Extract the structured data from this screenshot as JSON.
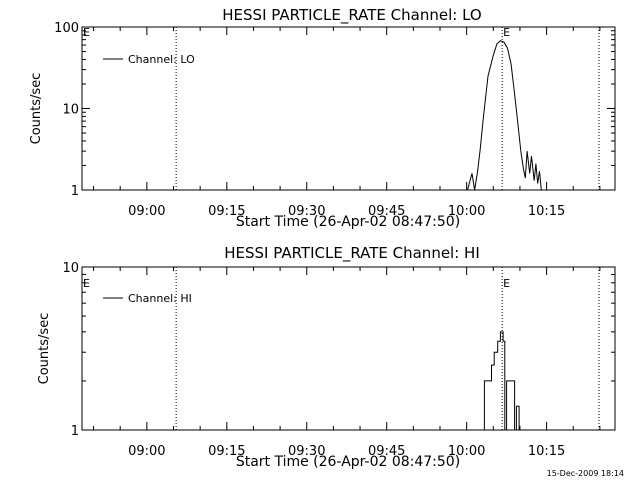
{
  "footer": {
    "timestamp": "15-Dec-2009 18:14"
  },
  "chart_data": [
    {
      "type": "line",
      "title": "HESSI PARTICLE_RATE Channel: LO",
      "xlabel": "Start Time (26-Apr-02 08:47:50)",
      "ylabel": "Counts/sec",
      "yscale": "log",
      "ylim": [
        1,
        100
      ],
      "xlim": [
        "08:47:50",
        "10:27:50"
      ],
      "x_ticks": [
        "09:00",
        "09:15",
        "09:30",
        "09:45",
        "10:00",
        "10:15"
      ],
      "y_ticks": [
        {
          "value": 1,
          "label": "1"
        },
        {
          "value": 10,
          "label": "10"
        },
        {
          "value": 100,
          "label": "100"
        }
      ],
      "legend": {
        "placement": "top-left",
        "entries": [
          "Channel: LO"
        ]
      },
      "markers": [
        {
          "time": "08:47:50",
          "label": "E",
          "line": false
        },
        {
          "time": "09:05:30",
          "label": "",
          "line": true
        },
        {
          "time": "10:06:40",
          "label": "E",
          "line": true
        },
        {
          "time": "10:24:50",
          "label": "",
          "line": true
        }
      ],
      "grid": false,
      "series": [
        {
          "name": "Channel: LO",
          "points": [
            [
              "10:00:10",
              1.0
            ],
            [
              "10:01:00",
              1.6
            ],
            [
              "10:01:30",
              1.0
            ],
            [
              "10:02:00",
              1.6
            ],
            [
              "10:02:30",
              3.0
            ],
            [
              "10:03:10",
              8.0
            ],
            [
              "10:04:00",
              25.0
            ],
            [
              "10:05:00",
              45.0
            ],
            [
              "10:05:40",
              62.0
            ],
            [
              "10:06:20",
              68.0
            ],
            [
              "10:07:00",
              65.0
            ],
            [
              "10:07:40",
              55.0
            ],
            [
              "10:08:20",
              35.0
            ],
            [
              "10:09:00",
              15.0
            ],
            [
              "10:09:40",
              6.0
            ],
            [
              "10:10:10",
              3.0
            ],
            [
              "10:10:40",
              1.8
            ],
            [
              "10:11:00",
              1.4
            ],
            [
              "10:11:20",
              3.0
            ],
            [
              "10:11:50",
              1.6
            ],
            [
              "10:12:10",
              2.6
            ],
            [
              "10:12:40",
              1.3
            ],
            [
              "10:13:00",
              2.1
            ],
            [
              "10:13:20",
              1.2
            ],
            [
              "10:13:40",
              1.7
            ],
            [
              "10:14:00",
              1.0
            ]
          ]
        }
      ]
    },
    {
      "type": "line",
      "title": "HESSI PARTICLE_RATE Channel: HI",
      "xlabel": "Start Time (26-Apr-02 08:47:50)",
      "ylabel": "Counts/sec",
      "yscale": "log",
      "ylim": [
        1,
        10
      ],
      "xlim": [
        "08:47:50",
        "10:27:50"
      ],
      "x_ticks": [
        "09:00",
        "09:15",
        "09:30",
        "09:45",
        "10:00",
        "10:15"
      ],
      "y_ticks": [
        {
          "value": 1,
          "label": "1"
        },
        {
          "value": 10,
          "label": "10"
        }
      ],
      "legend": {
        "placement": "top-left",
        "entries": [
          "Channel: HI"
        ]
      },
      "markers": [
        {
          "time": "08:47:50",
          "label": "E",
          "line": false
        },
        {
          "time": "09:05:30",
          "label": "",
          "line": true
        },
        {
          "time": "10:06:40",
          "label": "E",
          "line": true
        },
        {
          "time": "10:24:50",
          "label": "",
          "line": true
        }
      ],
      "grid": false,
      "series": [
        {
          "name": "Channel: HI",
          "points": [
            [
              "10:03:20",
              1.0
            ],
            [
              "10:03:20",
              2.0
            ],
            [
              "10:04:40",
              2.0
            ],
            [
              "10:04:40",
              2.5
            ],
            [
              "10:05:10",
              2.5
            ],
            [
              "10:05:10",
              3.0
            ],
            [
              "10:05:50",
              3.0
            ],
            [
              "10:05:50",
              3.5
            ],
            [
              "10:06:20",
              3.5
            ],
            [
              "10:06:20",
              4.0
            ],
            [
              "10:06:50",
              4.0
            ],
            [
              "10:06:50",
              3.5
            ],
            [
              "10:07:10",
              3.5
            ],
            [
              "10:07:10",
              1.0
            ],
            [
              "10:07:30",
              1.0
            ],
            [
              "10:07:30",
              2.0
            ],
            [
              "10:09:00",
              2.0
            ],
            [
              "10:09:00",
              1.0
            ],
            [
              "10:09:20",
              1.0
            ],
            [
              "10:09:20",
              1.4
            ],
            [
              "10:09:50",
              1.4
            ],
            [
              "10:09:50",
              1.0
            ]
          ]
        }
      ]
    }
  ]
}
